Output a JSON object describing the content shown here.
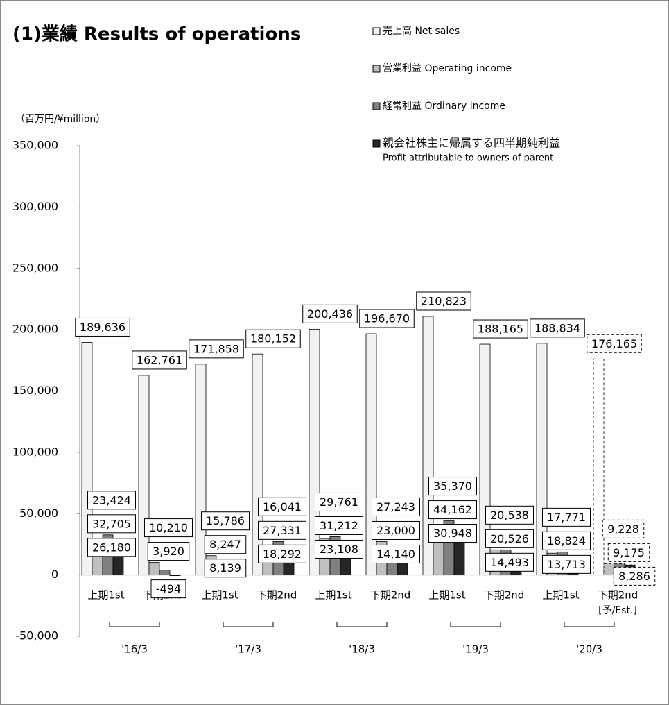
{
  "chart_data": {
    "type": "bar",
    "title": "(1)業績 Results of operations",
    "unit_label": "（百万円/¥million）",
    "categories": [
      "上期1st",
      "下期2nd",
      "上期1st",
      "下期2nd",
      "上期1st",
      "下期2nd",
      "上期1st",
      "下期2nd",
      "上期1st",
      "下期2nd"
    ],
    "estimate_label": "[予/Est.]",
    "estimated_categories": [
      9
    ],
    "group_labels": [
      "'16/3",
      "'17/3",
      "'18/3",
      "'19/3",
      "'20/3"
    ],
    "series": [
      {
        "name": "売上高 Net sales",
        "color": "#f2f2f2",
        "values": [
          189636,
          162761,
          171858,
          180152,
          200436,
          196670,
          210823,
          188165,
          188834,
          176165
        ],
        "value_labels": [
          "189,636",
          "162,761",
          "171,858",
          "180,152",
          "200,436",
          "196,670",
          "210,823",
          "188,165",
          "188,834",
          "176,165"
        ]
      },
      {
        "name": "営業利益 Operating income",
        "color": "#bfbfbf",
        "values": [
          23424,
          10210,
          15786,
          16041,
          29761,
          27243,
          35370,
          20538,
          17771,
          9228
        ],
        "value_labels": [
          "23,424",
          "10,210",
          "15,786",
          "16,041",
          "29,761",
          "27,243",
          "35,370",
          "20,538",
          "17,771",
          "9,228"
        ]
      },
      {
        "name": "経常利益 Ordinary income",
        "color": "#808080",
        "values": [
          32705,
          3920,
          8247,
          27331,
          31212,
          23000,
          44162,
          20526,
          18824,
          9175
        ],
        "value_labels": [
          "32,705",
          "3,920",
          "8,247",
          "27,331",
          "31,212",
          "23,000",
          "44,162",
          "20,526",
          "18,824",
          "9,175"
        ]
      },
      {
        "name": "親会社株主に帰属する四半期純利益",
        "name_line2": "Profit attributable to owners of parent",
        "color": "#262626",
        "values": [
          26180,
          -494,
          8139,
          18292,
          23108,
          14140,
          30948,
          14493,
          13713,
          8286
        ],
        "value_labels": [
          "26,180",
          "-494",
          "8,139",
          "18,292",
          "23,108",
          "14,140",
          "30,948",
          "14,493",
          "13,713",
          "8,286"
        ]
      }
    ],
    "ylim": [
      -50000,
      350000
    ],
    "yticks": [
      {
        "value": -50000,
        "label": "-50,000"
      },
      0,
      {
        "value": 50000,
        "label": "50,000"
      },
      {
        "value": 100000,
        "label": "100,000"
      },
      {
        "value": 150000,
        "label": "150,000"
      },
      {
        "value": 200000,
        "label": "200,000"
      },
      {
        "value": 250000,
        "label": "250,000"
      },
      {
        "value": 300000,
        "label": "300,000"
      },
      {
        "value": 350000,
        "label": "350,000"
      }
    ]
  }
}
